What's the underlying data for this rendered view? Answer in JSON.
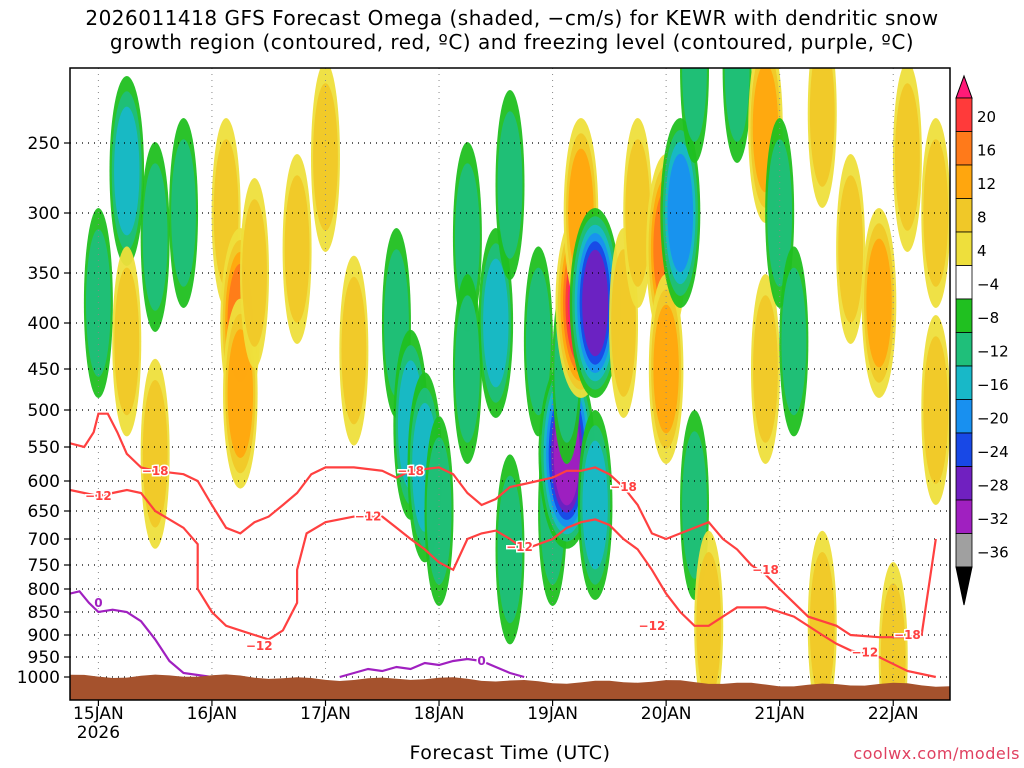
{
  "title": {
    "line1": "2026011418 GFS Forecast Omega (shaded, −cm/s) for KEWR with dendritic snow",
    "line2": "growth region (contoured, red, ºC) and freezing level (contoured, purple, ºC)"
  },
  "xlabel": "Forecast Time (UTC)",
  "credit": "coolwx.com/models",
  "chart_data": {
    "type": "heatmap",
    "title": "2026011418 GFS Forecast Omega (shaded, −cm/s) for KEWR with dendritic snow growth region (contoured, red, ºC) and freezing level (contoured, purple, ºC)",
    "xlabel": "Forecast Time (UTC)",
    "ylabel": "",
    "y_axis": {
      "scale": "pressure (hPa, log-like, inverted)",
      "ticks": [
        250,
        300,
        350,
        400,
        450,
        500,
        550,
        600,
        650,
        700,
        750,
        800,
        850,
        900,
        950,
        1000
      ],
      "range": [
        1000,
        200
      ]
    },
    "x_axis": {
      "ticks": [
        "15JAN",
        "16JAN",
        "17JAN",
        "18JAN",
        "19JAN",
        "20JAN",
        "21JAN",
        "22JAN"
      ],
      "first_tick_sublabel": "2026",
      "range_hours": [
        -6,
        180
      ]
    },
    "grid": true,
    "colorbar": {
      "labels": [
        "20",
        "16",
        "12",
        "8",
        "4",
        "−4",
        "−8",
        "−12",
        "−16",
        "−20",
        "−24",
        "−28",
        "−32",
        "−36"
      ],
      "colors": [
        "#ff1a78",
        "#ff3a3a",
        "#ff7a1a",
        "#ffa60e",
        "#f0c828",
        "#eedf3c",
        "#ffffff",
        "#20c020",
        "#1fbf7a",
        "#18b8c8",
        "#1890f0",
        "#1848e6",
        "#7020c0",
        "#a020c0",
        "#a0a0a0",
        "#000000"
      ],
      "placement": "right"
    },
    "omega_cells": [
      {
        "t": 0,
        "p": 380,
        "v": -10
      },
      {
        "t": 6,
        "p": 270,
        "v": -12
      },
      {
        "t": 6,
        "p": 420,
        "v": 6
      },
      {
        "t": 12,
        "p": 320,
        "v": -8
      },
      {
        "t": 12,
        "p": 560,
        "v": 6
      },
      {
        "t": 18,
        "p": 300,
        "v": -8
      },
      {
        "t": 27,
        "p": 300,
        "v": 6
      },
      {
        "t": 30,
        "p": 400,
        "v": 14
      },
      {
        "t": 30,
        "p": 480,
        "v": 10
      },
      {
        "t": 33,
        "p": 350,
        "v": 6
      },
      {
        "t": 42,
        "p": 330,
        "v": 6
      },
      {
        "t": 48,
        "p": 260,
        "v": 6
      },
      {
        "t": 54,
        "p": 430,
        "v": 6
      },
      {
        "t": 63,
        "p": 400,
        "v": -8
      },
      {
        "t": 66,
        "p": 520,
        "v": -12
      },
      {
        "t": 69,
        "p": 580,
        "v": -12
      },
      {
        "t": 72,
        "p": 650,
        "v": -10
      },
      {
        "t": 78,
        "p": 320,
        "v": -10
      },
      {
        "t": 78,
        "p": 450,
        "v": -8
      },
      {
        "t": 84,
        "p": 400,
        "v": -12
      },
      {
        "t": 87,
        "p": 280,
        "v": -8
      },
      {
        "t": 87,
        "p": 720,
        "v": -8
      },
      {
        "t": 93,
        "p": 420,
        "v": -10
      },
      {
        "t": 96,
        "p": 650,
        "v": -8
      },
      {
        "t": 99,
        "p": 560,
        "v": -28
      },
      {
        "t": 99,
        "p": 450,
        "v": -10
      },
      {
        "t": 102,
        "p": 380,
        "v": 20
      },
      {
        "t": 102,
        "p": 300,
        "v": 8
      },
      {
        "t": 105,
        "p": 380,
        "v": -24
      },
      {
        "t": 105,
        "p": 640,
        "v": -12
      },
      {
        "t": 111,
        "p": 400,
        "v": 6
      },
      {
        "t": 114,
        "p": 300,
        "v": 6
      },
      {
        "t": 120,
        "p": 330,
        "v": 12
      },
      {
        "t": 120,
        "p": 450,
        "v": 8
      },
      {
        "t": 123,
        "p": 300,
        "v": -16
      },
      {
        "t": 126,
        "p": 200,
        "v": -10
      },
      {
        "t": 126,
        "p": 640,
        "v": -10
      },
      {
        "t": 129,
        "p": 880,
        "v": 6
      },
      {
        "t": 135,
        "p": 200,
        "v": -8
      },
      {
        "t": 141,
        "p": 240,
        "v": 10
      },
      {
        "t": 141,
        "p": 450,
        "v": 6
      },
      {
        "t": 144,
        "p": 300,
        "v": -10
      },
      {
        "t": 147,
        "p": 420,
        "v": -8
      },
      {
        "t": 153,
        "p": 230,
        "v": 6
      },
      {
        "t": 153,
        "p": 880,
        "v": 6
      },
      {
        "t": 159,
        "p": 330,
        "v": 6
      },
      {
        "t": 165,
        "p": 380,
        "v": 8
      },
      {
        "t": 168,
        "p": 950,
        "v": 6
      },
      {
        "t": 171,
        "p": 260,
        "v": 6
      },
      {
        "t": 177,
        "p": 500,
        "v": 6
      },
      {
        "t": 177,
        "p": 300,
        "v": 6
      }
    ],
    "contours": [
      {
        "level": -18,
        "color": "#ff4040",
        "points": [
          [
            -6,
            545
          ],
          [
            -3,
            550
          ],
          [
            -1,
            530
          ],
          [
            0,
            505
          ],
          [
            2,
            505
          ],
          [
            4,
            530
          ],
          [
            6,
            560
          ],
          [
            9,
            580
          ],
          [
            12,
            585
          ],
          [
            18,
            590
          ],
          [
            21,
            600
          ],
          [
            24,
            640
          ],
          [
            27,
            680
          ],
          [
            30,
            690
          ],
          [
            33,
            670
          ],
          [
            36,
            660
          ],
          [
            39,
            640
          ],
          [
            42,
            620
          ],
          [
            45,
            590
          ],
          [
            48,
            580
          ],
          [
            54,
            580
          ],
          [
            60,
            585
          ],
          [
            63,
            595
          ],
          [
            66,
            585
          ],
          [
            72,
            580
          ],
          [
            75,
            590
          ],
          [
            78,
            620
          ],
          [
            81,
            640
          ],
          [
            84,
            630
          ],
          [
            87,
            610
          ],
          [
            90,
            605
          ],
          [
            96,
            595
          ],
          [
            99,
            585
          ],
          [
            102,
            585
          ],
          [
            105,
            580
          ],
          [
            108,
            590
          ],
          [
            111,
            610
          ],
          [
            114,
            640
          ],
          [
            117,
            690
          ],
          [
            120,
            700
          ],
          [
            123,
            690
          ],
          [
            126,
            680
          ],
          [
            129,
            670
          ],
          [
            132,
            700
          ],
          [
            135,
            720
          ],
          [
            138,
            750
          ],
          [
            141,
            770
          ],
          [
            144,
            800
          ],
          [
            147,
            830
          ],
          [
            150,
            860
          ],
          [
            153,
            870
          ],
          [
            156,
            880
          ],
          [
            159,
            900
          ],
          [
            165,
            905
          ],
          [
            171,
            905
          ],
          [
            174,
            900
          ],
          [
            177,
            700
          ]
        ]
      },
      {
        "level": -12,
        "color": "#ff4040",
        "points": [
          [
            -6,
            615
          ],
          [
            -3,
            620
          ],
          [
            0,
            625
          ],
          [
            3,
            620
          ],
          [
            6,
            615
          ],
          [
            9,
            620
          ],
          [
            12,
            650
          ],
          [
            15,
            665
          ],
          [
            18,
            680
          ],
          [
            21,
            710
          ],
          [
            21,
            800
          ],
          [
            24,
            850
          ],
          [
            27,
            880
          ],
          [
            30,
            890
          ],
          [
            33,
            900
          ],
          [
            36,
            910
          ],
          [
            39,
            890
          ],
          [
            42,
            830
          ],
          [
            42,
            760
          ],
          [
            44,
            690
          ],
          [
            48,
            670
          ],
          [
            54,
            660
          ],
          [
            60,
            660
          ],
          [
            63,
            680
          ],
          [
            66,
            700
          ],
          [
            69,
            720
          ],
          [
            72,
            745
          ],
          [
            75,
            760
          ],
          [
            78,
            700
          ],
          [
            81,
            690
          ],
          [
            84,
            685
          ],
          [
            87,
            700
          ],
          [
            90,
            720
          ],
          [
            96,
            700
          ],
          [
            99,
            680
          ],
          [
            102,
            670
          ],
          [
            105,
            665
          ],
          [
            108,
            675
          ],
          [
            111,
            700
          ],
          [
            114,
            720
          ],
          [
            117,
            760
          ],
          [
            120,
            810
          ],
          [
            123,
            850
          ],
          [
            126,
            880
          ],
          [
            129,
            880
          ],
          [
            132,
            860
          ],
          [
            135,
            840
          ],
          [
            141,
            840
          ],
          [
            147,
            860
          ],
          [
            153,
            900
          ],
          [
            156,
            920
          ],
          [
            159,
            935
          ],
          [
            165,
            950
          ],
          [
            171,
            985
          ],
          [
            177,
            1000
          ]
        ]
      },
      {
        "level": 0,
        "color": "#a020c0",
        "points": [
          [
            -6,
            810
          ],
          [
            -4,
            805
          ],
          [
            -2,
            830
          ],
          [
            0,
            850
          ],
          [
            3,
            845
          ],
          [
            6,
            850
          ],
          [
            9,
            870
          ],
          [
            12,
            910
          ],
          [
            15,
            960
          ],
          [
            18,
            990
          ],
          [
            21,
            995
          ],
          [
            24,
            1000
          ]
        ]
      },
      {
        "level": 0,
        "color": "#a020c0",
        "points": [
          [
            51,
            1000
          ],
          [
            54,
            990
          ],
          [
            57,
            980
          ],
          [
            60,
            985
          ],
          [
            63,
            975
          ],
          [
            66,
            980
          ],
          [
            69,
            965
          ],
          [
            72,
            970
          ],
          [
            75,
            960
          ],
          [
            78,
            955
          ],
          [
            81,
            960
          ],
          [
            84,
            975
          ],
          [
            87,
            990
          ],
          [
            90,
            1000
          ]
        ]
      }
    ],
    "contour_labels": [
      {
        "text": "−18",
        "t": 12,
        "p": 585,
        "color": "#ff4040"
      },
      {
        "text": "−12",
        "t": 0,
        "p": 625,
        "color": "#ff4040"
      },
      {
        "text": "−12",
        "t": 34,
        "p": 925,
        "color": "#ff4040"
      },
      {
        "text": "−18",
        "t": 66,
        "p": 585,
        "color": "#ff4040"
      },
      {
        "text": "−12",
        "t": 57,
        "p": 660,
        "color": "#ff4040"
      },
      {
        "text": "−12",
        "t": 89,
        "p": 715,
        "color": "#ff4040"
      },
      {
        "text": "−18",
        "t": 111,
        "p": 610,
        "color": "#ff4040"
      },
      {
        "text": "−18",
        "t": 141,
        "p": 760,
        "color": "#ff4040"
      },
      {
        "text": "−12",
        "t": 117,
        "p": 880,
        "color": "#ff4040"
      },
      {
        "text": "−12",
        "t": 162,
        "p": 940,
        "color": "#ff4040"
      },
      {
        "text": "−18",
        "t": 171,
        "p": 900,
        "color": "#ff4040"
      },
      {
        "text": "0",
        "t": 0,
        "p": 830,
        "color": "#a020c0"
      },
      {
        "text": "0",
        "t": 81,
        "p": 960,
        "color": "#a020c0"
      }
    ],
    "terrain_color": "#a5522d"
  }
}
